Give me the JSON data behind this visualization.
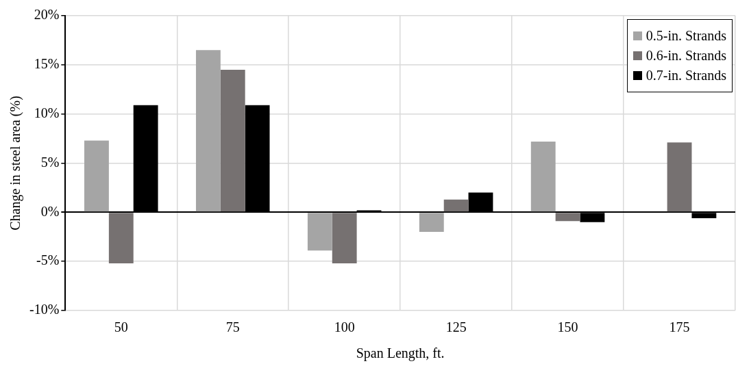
{
  "chart_data": {
    "type": "bar",
    "xlabel": "Span Length, ft.",
    "ylabel": "Change in steel area (%)",
    "categories": [
      "50",
      "75",
      "100",
      "125",
      "150",
      "175"
    ],
    "series": [
      {
        "name": "0.5-in. Strands",
        "color": "#a5a5a5",
        "values": [
          7.3,
          16.5,
          -3.9,
          -2.0,
          7.2,
          null
        ]
      },
      {
        "name": "0.6-in. Strands",
        "color": "#767171",
        "values": [
          -5.2,
          14.5,
          -5.2,
          1.3,
          -0.9,
          7.1
        ]
      },
      {
        "name": "0.7-in. Strands",
        "color": "#000000",
        "values": [
          10.9,
          10.9,
          0.2,
          2.0,
          -1.0,
          -0.6
        ]
      }
    ],
    "ylim": [
      -10,
      20
    ],
    "yticks": [
      {
        "value": -10,
        "label": "-10%"
      },
      {
        "value": -5,
        "label": "-5%"
      },
      {
        "value": 0,
        "label": "0%"
      },
      {
        "value": 5,
        "label": "5%"
      },
      {
        "value": 10,
        "label": "10%"
      },
      {
        "value": 15,
        "label": "15%"
      },
      {
        "value": 20,
        "label": "20%"
      }
    ],
    "grid": true,
    "legend": "top right"
  }
}
